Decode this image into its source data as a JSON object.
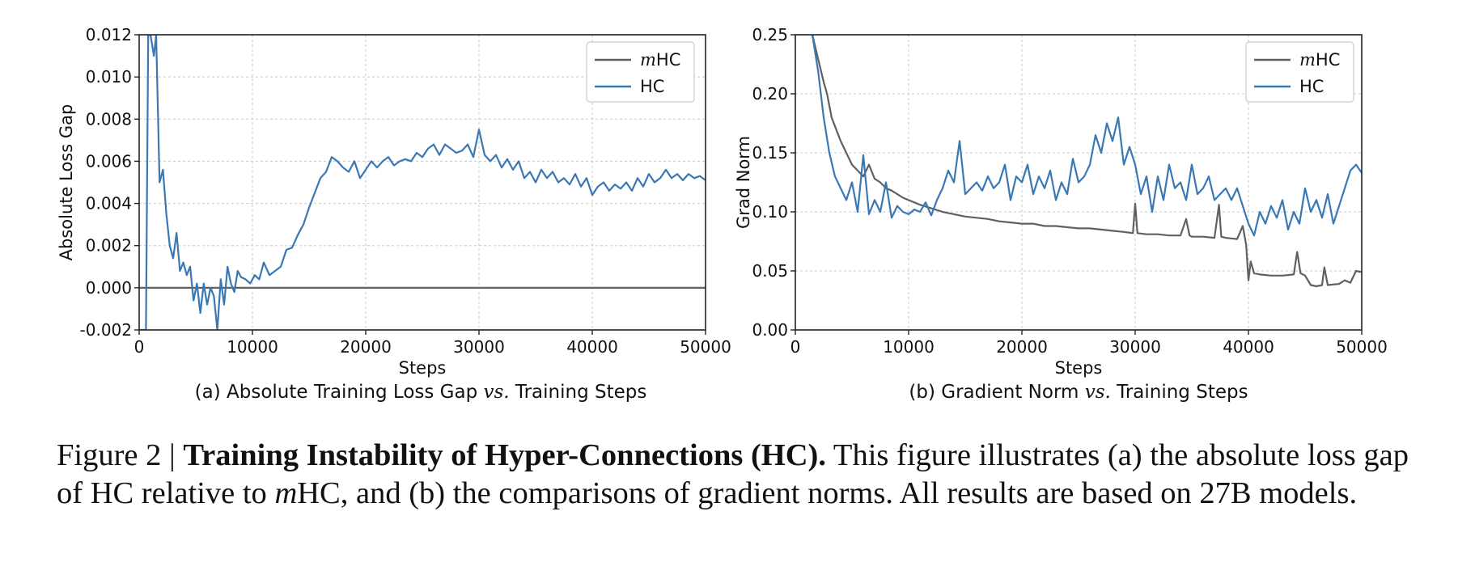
{
  "chart_data": [
    {
      "type": "line",
      "title": "(a) Absolute Training Loss Gap vs. Training Steps",
      "caption_parts": {
        "before": "(a) Absolute Training Loss Gap ",
        "vs": "vs.",
        "after": " Training Steps"
      },
      "xlabel": "Steps",
      "ylabel": "Absolute Loss Gap",
      "xlim": [
        0,
        50000
      ],
      "ylim": [
        -0.002,
        0.012
      ],
      "xticks": [
        "0",
        "10000",
        "20000",
        "30000",
        "40000",
        "50000"
      ],
      "yticks": [
        "-0.002",
        "0.000",
        "0.002",
        "0.004",
        "0.006",
        "0.008",
        "0.010",
        "0.012"
      ],
      "grid": true,
      "legend": "top-right",
      "series": [
        {
          "name": "mHC",
          "color": "#606060",
          "x": [
            0,
            50000
          ],
          "y": [
            0,
            0
          ]
        },
        {
          "name": "HC",
          "color": "#3a78b4",
          "x": [
            0,
            300,
            600,
            800,
            1000,
            1300,
            1500,
            1800,
            2100,
            2400,
            2700,
            3000,
            3300,
            3600,
            3900,
            4200,
            4500,
            4800,
            5100,
            5400,
            5700,
            6000,
            6300,
            6600,
            6900,
            7200,
            7500,
            7800,
            8100,
            8400,
            8700,
            9000,
            9400,
            9800,
            10200,
            10600,
            11000,
            11500,
            12000,
            12500,
            13000,
            13500,
            14000,
            14500,
            15000,
            15500,
            16000,
            16500,
            17000,
            17500,
            18000,
            18500,
            19000,
            19500,
            20000,
            20500,
            21000,
            21500,
            22000,
            22500,
            23000,
            23500,
            24000,
            24500,
            25000,
            25500,
            26000,
            26500,
            27000,
            27500,
            28000,
            28500,
            29000,
            29500,
            30000,
            30500,
            31000,
            31500,
            32000,
            32500,
            33000,
            33500,
            34000,
            34500,
            35000,
            35500,
            36000,
            36500,
            37000,
            37500,
            38000,
            38500,
            39000,
            39500,
            40000,
            40500,
            41000,
            41500,
            42000,
            42500,
            43000,
            43500,
            44000,
            44500,
            45000,
            45500,
            46000,
            46500,
            47000,
            47500,
            48000,
            48500,
            49000,
            49500,
            50000
          ],
          "y": [
            -0.002,
            -0.002,
            -0.002,
            0.012,
            0.012,
            0.011,
            0.012,
            0.005,
            0.0056,
            0.0035,
            0.002,
            0.0014,
            0.0026,
            0.0008,
            0.0012,
            0.0006,
            0.001,
            -0.0006,
            0.0002,
            -0.0012,
            0.0002,
            -0.0008,
            0.0,
            -0.0004,
            -0.002,
            0.0004,
            -0.0008,
            0.001,
            0.0002,
            -0.0002,
            0.0008,
            0.0005,
            0.0004,
            0.0002,
            0.0006,
            0.0004,
            0.0012,
            0.0006,
            0.0008,
            0.001,
            0.0018,
            0.0019,
            0.0025,
            0.003,
            0.0038,
            0.0045,
            0.0052,
            0.0055,
            0.0062,
            0.006,
            0.0057,
            0.0055,
            0.006,
            0.0052,
            0.0056,
            0.006,
            0.0057,
            0.006,
            0.0062,
            0.0058,
            0.006,
            0.0061,
            0.006,
            0.0064,
            0.0062,
            0.0066,
            0.0068,
            0.0063,
            0.0068,
            0.0066,
            0.0064,
            0.0065,
            0.0068,
            0.0062,
            0.0075,
            0.0063,
            0.006,
            0.0063,
            0.0057,
            0.0061,
            0.0056,
            0.006,
            0.0052,
            0.0055,
            0.005,
            0.0056,
            0.0052,
            0.0055,
            0.005,
            0.0052,
            0.0049,
            0.0054,
            0.0048,
            0.0052,
            0.0044,
            0.0048,
            0.005,
            0.0046,
            0.0049,
            0.0047,
            0.005,
            0.0046,
            0.0052,
            0.0048,
            0.0054,
            0.005,
            0.0052,
            0.0056,
            0.0052,
            0.0054,
            0.0051,
            0.0054,
            0.0052,
            0.0053,
            0.0051
          ]
        }
      ]
    },
    {
      "type": "line",
      "title": "(b) Gradient Norm vs. Training Steps",
      "caption_parts": {
        "before": "(b) Gradient Norm ",
        "vs": "vs.",
        "after": " Training Steps"
      },
      "xlabel": "Steps",
      "ylabel": "Grad Norm",
      "xlim": [
        0,
        50000
      ],
      "ylim": [
        0,
        0.25
      ],
      "xticks": [
        "0",
        "10000",
        "20000",
        "30000",
        "40000",
        "50000"
      ],
      "yticks": [
        "0.00",
        "0.05",
        "0.10",
        "0.15",
        "0.20",
        "0.25"
      ],
      "grid": true,
      "legend": "top-right",
      "series": [
        {
          "name": "mHC",
          "color": "#606060",
          "x": [
            1500,
            2000,
            2500,
            2800,
            3200,
            3600,
            4000,
            4500,
            5000,
            5500,
            6000,
            6500,
            7000,
            7500,
            8000,
            8500,
            9000,
            9500,
            10000,
            11000,
            12000,
            13000,
            14000,
            15000,
            16000,
            17000,
            18000,
            19000,
            20000,
            21000,
            22000,
            23000,
            24000,
            25000,
            26000,
            27000,
            28000,
            29000,
            29800,
            30000,
            30200,
            31000,
            32000,
            33000,
            34000,
            34500,
            34800,
            35000,
            36000,
            37000,
            37400,
            37600,
            38000,
            39000,
            39500,
            39800,
            40000,
            40200,
            40500,
            41000,
            42000,
            43000,
            44000,
            44300,
            44600,
            45000,
            45500,
            46000,
            46500,
            46700,
            47000,
            48000,
            48500,
            49000,
            49500,
            50000
          ],
          "y": [
            0.25,
            0.23,
            0.21,
            0.2,
            0.18,
            0.17,
            0.16,
            0.15,
            0.14,
            0.135,
            0.13,
            0.14,
            0.128,
            0.125,
            0.12,
            0.118,
            0.115,
            0.112,
            0.11,
            0.106,
            0.103,
            0.1,
            0.098,
            0.096,
            0.095,
            0.094,
            0.092,
            0.091,
            0.09,
            0.09,
            0.088,
            0.088,
            0.087,
            0.086,
            0.086,
            0.085,
            0.084,
            0.083,
            0.082,
            0.107,
            0.082,
            0.081,
            0.081,
            0.08,
            0.08,
            0.094,
            0.08,
            0.079,
            0.079,
            0.078,
            0.106,
            0.079,
            0.078,
            0.077,
            0.088,
            0.072,
            0.042,
            0.058,
            0.048,
            0.047,
            0.046,
            0.046,
            0.047,
            0.066,
            0.048,
            0.046,
            0.038,
            0.037,
            0.038,
            0.053,
            0.038,
            0.039,
            0.042,
            0.04,
            0.05,
            0.049
          ]
        },
        {
          "name": "HC",
          "color": "#3a78b4",
          "x": [
            1500,
            2000,
            2500,
            3000,
            3500,
            4000,
            4500,
            5000,
            5500,
            6000,
            6500,
            7000,
            7500,
            8000,
            8500,
            9000,
            9500,
            10000,
            10500,
            11000,
            11500,
            12000,
            12500,
            13000,
            13500,
            14000,
            14500,
            15000,
            15500,
            16000,
            16500,
            17000,
            17500,
            18000,
            18500,
            19000,
            19500,
            20000,
            20500,
            21000,
            21500,
            22000,
            22500,
            23000,
            23500,
            24000,
            24500,
            25000,
            25500,
            26000,
            26500,
            27000,
            27500,
            28000,
            28500,
            29000,
            29500,
            30000,
            30500,
            31000,
            31500,
            32000,
            32500,
            33000,
            33500,
            34000,
            34500,
            35000,
            35500,
            36000,
            36500,
            37000,
            37500,
            38000,
            38500,
            39000,
            39500,
            40000,
            40500,
            41000,
            41500,
            42000,
            42500,
            43000,
            43500,
            44000,
            44500,
            45000,
            45500,
            46000,
            46500,
            47000,
            47500,
            48000,
            48500,
            49000,
            49500,
            50000
          ],
          "y": [
            0.25,
            0.22,
            0.18,
            0.15,
            0.13,
            0.12,
            0.11,
            0.125,
            0.1,
            0.148,
            0.098,
            0.11,
            0.1,
            0.125,
            0.095,
            0.105,
            0.1,
            0.098,
            0.102,
            0.1,
            0.108,
            0.097,
            0.11,
            0.12,
            0.135,
            0.125,
            0.16,
            0.115,
            0.12,
            0.125,
            0.118,
            0.13,
            0.12,
            0.125,
            0.14,
            0.11,
            0.13,
            0.125,
            0.14,
            0.115,
            0.13,
            0.12,
            0.135,
            0.11,
            0.125,
            0.115,
            0.145,
            0.125,
            0.13,
            0.14,
            0.165,
            0.15,
            0.175,
            0.16,
            0.18,
            0.14,
            0.155,
            0.14,
            0.115,
            0.13,
            0.1,
            0.13,
            0.11,
            0.14,
            0.12,
            0.125,
            0.11,
            0.14,
            0.115,
            0.12,
            0.13,
            0.11,
            0.115,
            0.12,
            0.11,
            0.12,
            0.105,
            0.09,
            0.08,
            0.1,
            0.09,
            0.105,
            0.095,
            0.11,
            0.085,
            0.1,
            0.09,
            0.12,
            0.1,
            0.11,
            0.095,
            0.115,
            0.09,
            0.105,
            0.12,
            0.135,
            0.14,
            0.133
          ]
        }
      ]
    }
  ],
  "figure_caption": {
    "label": "Figure 2 | ",
    "bold_title": "Training Instability of Hyper-Connections (HC).",
    "text_1": " This figure illustrates (a) the absolute loss gap of HC relative to ",
    "m_italic": "m",
    "text_2": "HC, and (b) the comparisons of gradient norms.  All results are based on 27B models."
  }
}
